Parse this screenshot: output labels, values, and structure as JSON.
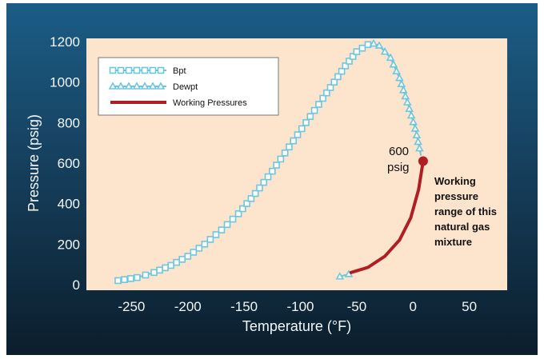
{
  "chart_data": {
    "type": "line",
    "xlabel": "Temperature (°F)",
    "ylabel": "Pressure (psig)",
    "xlim": [
      -300,
      100
    ],
    "ylim": [
      0,
      1200
    ],
    "x_ticks": [
      "-250",
      "-200",
      "-150",
      "-100",
      "-50",
      "0",
      "50"
    ],
    "y_ticks": [
      "0",
      "200",
      "400",
      "600",
      "800",
      "1000",
      "1200"
    ],
    "legend_position": "top-left",
    "grid": false,
    "colors": {
      "background": "#fde5cd",
      "bpt": "#6cc6de",
      "dewpt": "#6cc6de",
      "working": "#b01e23"
    },
    "series": [
      {
        "name": "Bpt",
        "x": [
          -262,
          -245,
          -230,
          -215,
          -200,
          -185,
          -170,
          -155,
          -140,
          -125,
          -110,
          -95,
          -80,
          -70,
          -60,
          -50,
          -40,
          -35
        ],
        "y": [
          20,
          35,
          60,
          95,
          140,
          200,
          270,
          350,
          450,
          560,
          680,
          800,
          920,
          1000,
          1080,
          1150,
          1185,
          1190
        ]
      },
      {
        "name": "Dewpt",
        "x": [
          -35,
          -30,
          -20,
          -12,
          -5,
          2,
          7
        ],
        "y": [
          1190,
          1180,
          1120,
          1020,
          900,
          770,
          640
        ]
      },
      {
        "name": "Working Pressures",
        "x": [
          -55,
          -40,
          -25,
          -12,
          -2,
          5,
          9
        ],
        "y": [
          60,
          85,
          140,
          220,
          330,
          470,
          610
        ]
      }
    ],
    "annotations": {
      "psig_value": "600",
      "psig_unit": "psig",
      "range_text": [
        "Working",
        "pressure",
        "range of this",
        "natural gas",
        "mixture"
      ]
    },
    "low_dewpt_segment": {
      "x": [
        -65,
        -57,
        -50
      ],
      "y": [
        40,
        52,
        65
      ]
    }
  }
}
